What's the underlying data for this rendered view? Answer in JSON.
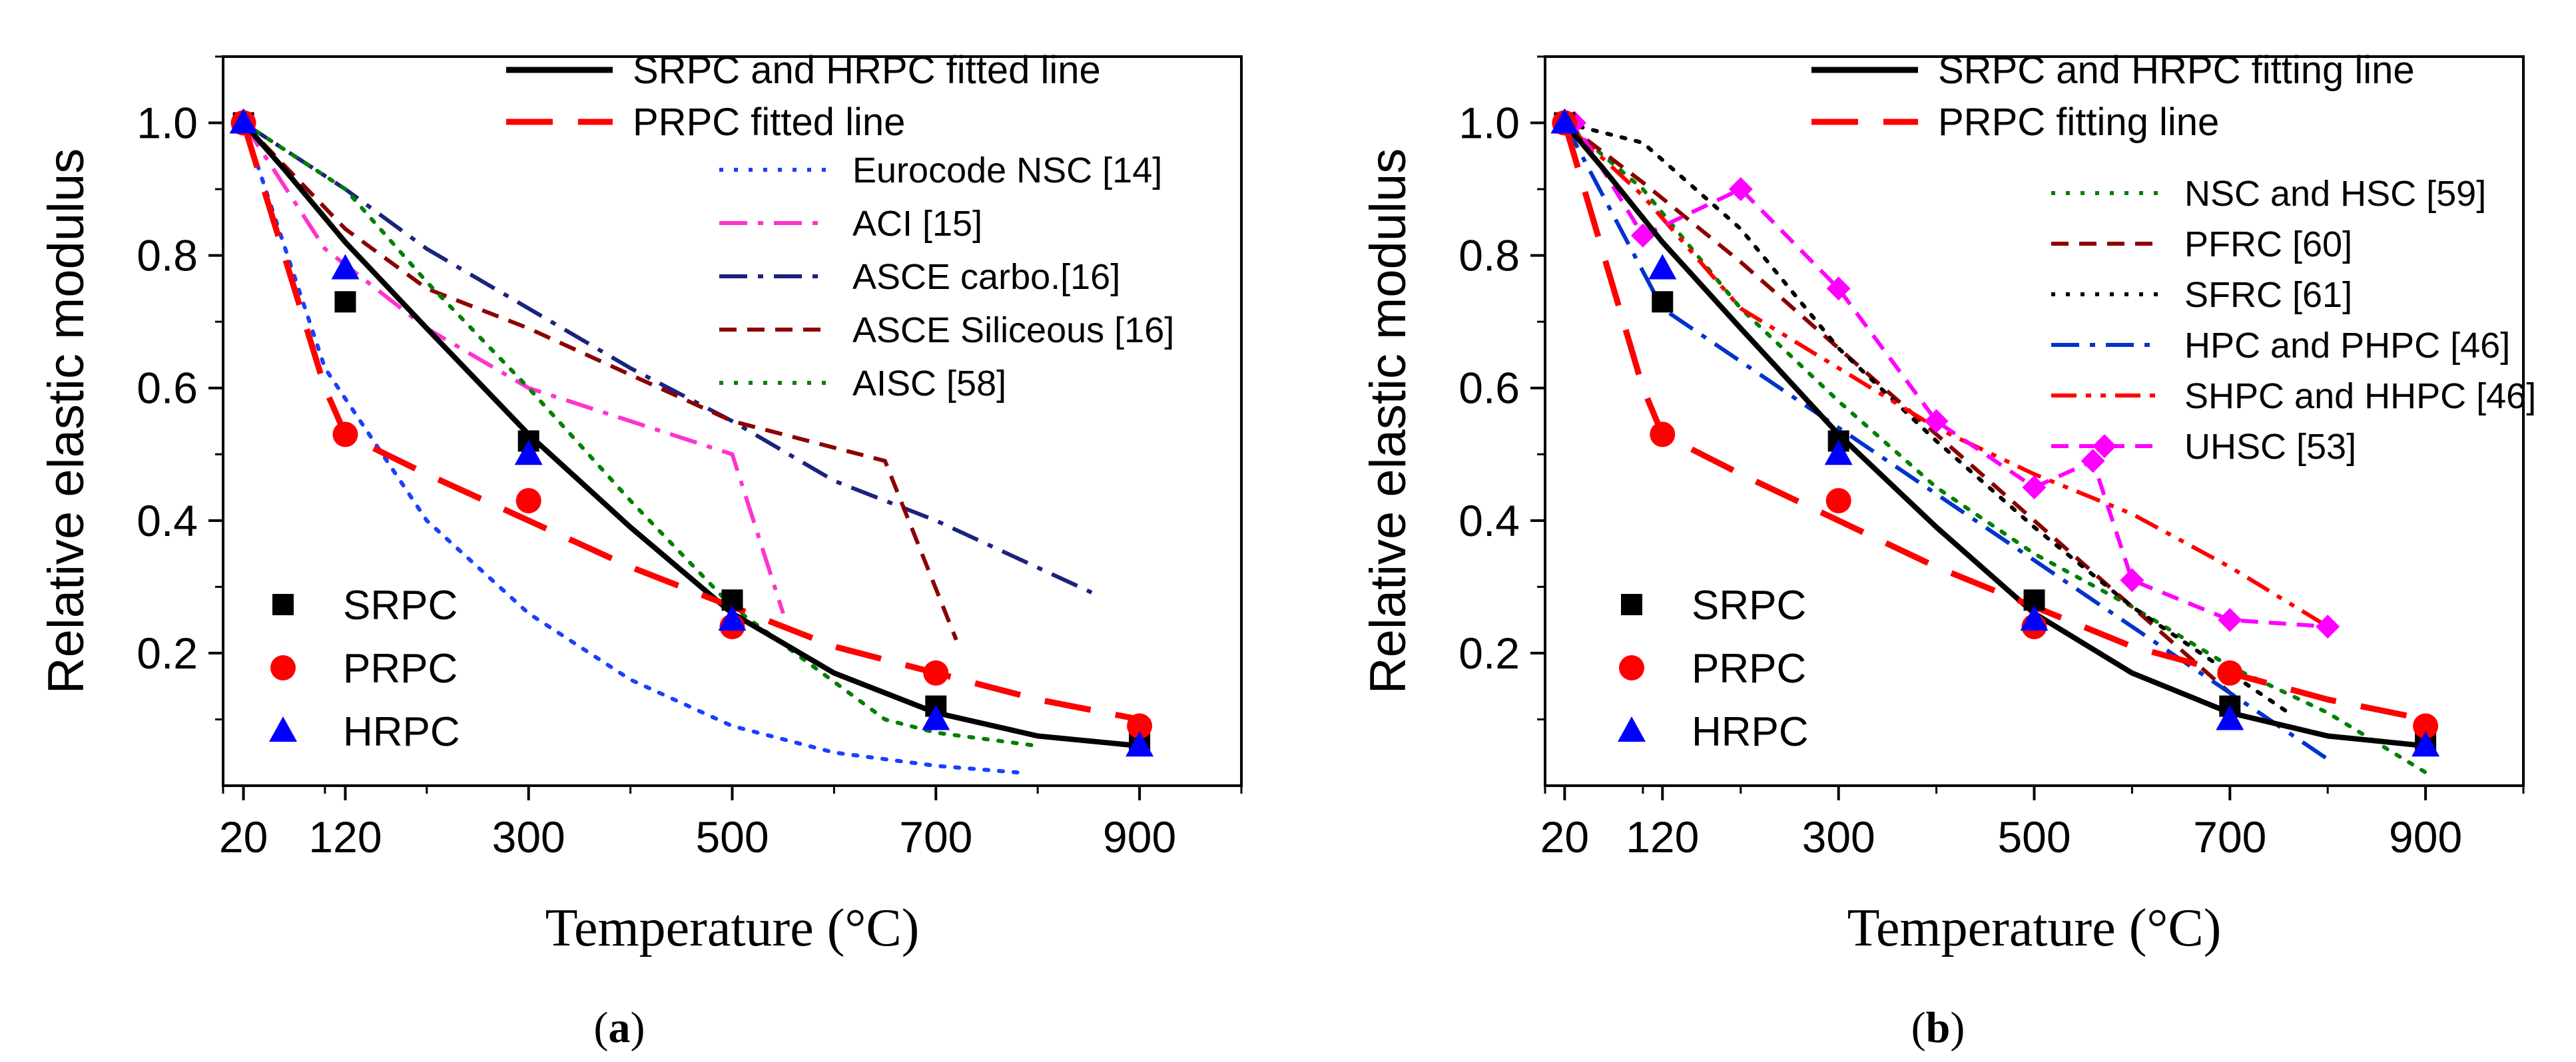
{
  "chart_data": [
    {
      "type": "line",
      "panel": "(a)",
      "panel_letter": "a",
      "xlabel": "Temperature (°C)",
      "ylabel": "Relative elastic modulus",
      "xlim": [
        0,
        1000
      ],
      "ylim": [
        0,
        1.1
      ],
      "x_ticks": [
        20,
        120,
        300,
        500,
        700,
        900
      ],
      "y_ticks": [
        0.2,
        0.4,
        0.6,
        0.8,
        1.0
      ],
      "y_tick_labels": [
        "0.2",
        "0.4",
        "0.6",
        "0.8",
        "1.0"
      ],
      "fitted_lines": [
        {
          "name": "SRPC and HRPC fitted line",
          "color": "#000000",
          "dash": "solid",
          "x": [
            20,
            60,
            120,
            200,
            300,
            400,
            500,
            600,
            700,
            800,
            900
          ],
          "y": [
            1.0,
            0.93,
            0.82,
            0.69,
            0.53,
            0.39,
            0.26,
            0.17,
            0.11,
            0.075,
            0.06
          ]
        },
        {
          "name": "PRPC fitted line",
          "color": "#ff0000",
          "dash": "long",
          "x": [
            20,
            60,
            100,
            120,
            200,
            300,
            400,
            500,
            600,
            700,
            800,
            900
          ],
          "y": [
            1.0,
            0.8,
            0.6,
            0.53,
            0.47,
            0.4,
            0.33,
            0.27,
            0.21,
            0.17,
            0.13,
            0.1
          ]
        }
      ],
      "reference_lines": [
        {
          "name": "Eurocode NSC [14]",
          "color": "#1a3fff",
          "dash": "dot",
          "x": [
            20,
            100,
            200,
            300,
            400,
            500,
            600,
            700,
            780
          ],
          "y": [
            1.0,
            0.63,
            0.4,
            0.26,
            0.16,
            0.09,
            0.05,
            0.03,
            0.02
          ]
        },
        {
          "name": "ACI [15]",
          "color": "#ff33cc",
          "dash": "dashdot",
          "x": [
            20,
            100,
            200,
            300,
            400,
            500,
            550
          ],
          "y": [
            1.0,
            0.81,
            0.69,
            0.6,
            0.55,
            0.5,
            0.26
          ]
        },
        {
          "name": "ASCE carbo.[16]",
          "color": "#1a237e",
          "dash": "dashdot",
          "x": [
            20,
            120,
            200,
            300,
            400,
            500,
            600,
            700,
            855
          ],
          "y": [
            1.0,
            0.9,
            0.81,
            0.72,
            0.63,
            0.55,
            0.46,
            0.4,
            0.29
          ]
        },
        {
          "name": "ASCE Siliceous [16]",
          "color": "#8b0000",
          "dash": "dash",
          "x": [
            20,
            120,
            200,
            300,
            400,
            500,
            650,
            720
          ],
          "y": [
            1.0,
            0.84,
            0.75,
            0.69,
            0.62,
            0.55,
            0.49,
            0.22
          ]
        },
        {
          "name": "AISC [58]",
          "color": "#008000",
          "dash": "dot",
          "x": [
            20,
            120,
            200,
            300,
            400,
            500,
            650,
            700,
            800
          ],
          "y": [
            1.0,
            0.9,
            0.76,
            0.6,
            0.43,
            0.27,
            0.1,
            0.08,
            0.06
          ]
        }
      ],
      "experimental": [
        {
          "name": "SRPC",
          "marker": "square",
          "color": "#000000",
          "x": [
            20,
            120,
            300,
            500,
            700,
            900
          ],
          "y": [
            1.0,
            0.73,
            0.52,
            0.28,
            0.12,
            0.07
          ]
        },
        {
          "name": "PRPC",
          "marker": "circle",
          "color": "#ff0000",
          "x": [
            20,
            120,
            300,
            500,
            700,
            900
          ],
          "y": [
            1.0,
            0.53,
            0.43,
            0.24,
            0.17,
            0.09
          ]
        },
        {
          "name": "HRPC",
          "marker": "triangle",
          "color": "#0000ff",
          "x": [
            20,
            120,
            300,
            500,
            700,
            900
          ],
          "y": [
            1.0,
            0.78,
            0.5,
            0.25,
            0.1,
            0.06
          ]
        }
      ]
    },
    {
      "type": "line",
      "panel": "(b)",
      "panel_letter": "b",
      "xlabel": "Temperature (°C)",
      "ylabel": "Relative elastic modulus",
      "xlim": [
        0,
        1000
      ],
      "ylim": [
        0,
        1.1
      ],
      "x_ticks": [
        20,
        120,
        300,
        500,
        700,
        900
      ],
      "y_ticks": [
        0.2,
        0.4,
        0.6,
        0.8,
        1.0
      ],
      "y_tick_labels": [
        "0.2",
        "0.4",
        "0.6",
        "0.8",
        "1.0"
      ],
      "fitted_lines": [
        {
          "name": "SRPC and HRPC fitting line",
          "color": "#000000",
          "dash": "solid",
          "x": [
            20,
            60,
            120,
            200,
            300,
            400,
            500,
            600,
            700,
            800,
            900
          ],
          "y": [
            1.0,
            0.93,
            0.82,
            0.69,
            0.53,
            0.39,
            0.26,
            0.17,
            0.11,
            0.075,
            0.06
          ]
        },
        {
          "name": "PRPC fitting line",
          "color": "#ff0000",
          "dash": "long",
          "x": [
            20,
            60,
            100,
            120,
            200,
            300,
            400,
            500,
            600,
            700,
            800,
            900
          ],
          "y": [
            1.0,
            0.8,
            0.6,
            0.53,
            0.47,
            0.4,
            0.33,
            0.27,
            0.21,
            0.17,
            0.13,
            0.1
          ]
        }
      ],
      "reference_lines": [
        {
          "name": "NSC and HSC [59]",
          "color": "#008000",
          "dash": "dot",
          "x": [
            20,
            100,
            200,
            300,
            400,
            500,
            600,
            700,
            800,
            900
          ],
          "y": [
            1.0,
            0.9,
            0.72,
            0.58,
            0.45,
            0.35,
            0.27,
            0.18,
            0.11,
            0.02
          ]
        },
        {
          "name": "PFRC [60]",
          "color": "#8b0000",
          "dash": "dash",
          "x": [
            20,
            100,
            200,
            300,
            400,
            500,
            600,
            700
          ],
          "y": [
            1.0,
            0.91,
            0.79,
            0.66,
            0.53,
            0.4,
            0.27,
            0.14
          ]
        },
        {
          "name": "SFRC [61]",
          "color": "#000000",
          "dash": "dot",
          "x": [
            20,
            100,
            200,
            300,
            400,
            500,
            600,
            700,
            760
          ],
          "y": [
            1.0,
            0.97,
            0.84,
            0.66,
            0.52,
            0.39,
            0.27,
            0.17,
            0.11
          ]
        },
        {
          "name": "HPC and PHPC [46]",
          "color": "#0033cc",
          "dash": "dashdot",
          "x": [
            20,
            120,
            200,
            300,
            400,
            500,
            600,
            700,
            800
          ],
          "y": [
            1.0,
            0.72,
            0.64,
            0.54,
            0.44,
            0.34,
            0.24,
            0.14,
            0.04
          ]
        },
        {
          "name": "SHPC and HHPC [46]",
          "color": "#ff0000",
          "dash": "dashdotdot",
          "x": [
            20,
            100,
            200,
            300,
            400,
            500,
            600,
            700,
            800
          ],
          "y": [
            1.0,
            0.89,
            0.72,
            0.63,
            0.54,
            0.47,
            0.41,
            0.33,
            0.24
          ]
        },
        {
          "name": "UHSC [53]",
          "color": "#ff00ff",
          "dash": "dash",
          "x": [
            20,
            30,
            100,
            200,
            300,
            400,
            500,
            560,
            600,
            700,
            800
          ],
          "y": [
            1.0,
            1.0,
            0.83,
            0.9,
            0.75,
            0.55,
            0.45,
            0.49,
            0.31,
            0.25,
            0.24
          ]
        }
      ],
      "experimental": [
        {
          "name": "SRPC",
          "marker": "square",
          "color": "#000000",
          "x": [
            20,
            120,
            300,
            500,
            700,
            900
          ],
          "y": [
            1.0,
            0.73,
            0.52,
            0.28,
            0.12,
            0.07
          ]
        },
        {
          "name": "PRPC",
          "marker": "circle",
          "color": "#ff0000",
          "x": [
            20,
            120,
            300,
            500,
            700,
            900
          ],
          "y": [
            1.0,
            0.53,
            0.43,
            0.24,
            0.17,
            0.09
          ]
        },
        {
          "name": "HRPC",
          "marker": "triangle",
          "color": "#0000ff",
          "x": [
            20,
            120,
            300,
            500,
            700,
            900
          ],
          "y": [
            1.0,
            0.78,
            0.5,
            0.25,
            0.1,
            0.06
          ]
        }
      ]
    }
  ]
}
